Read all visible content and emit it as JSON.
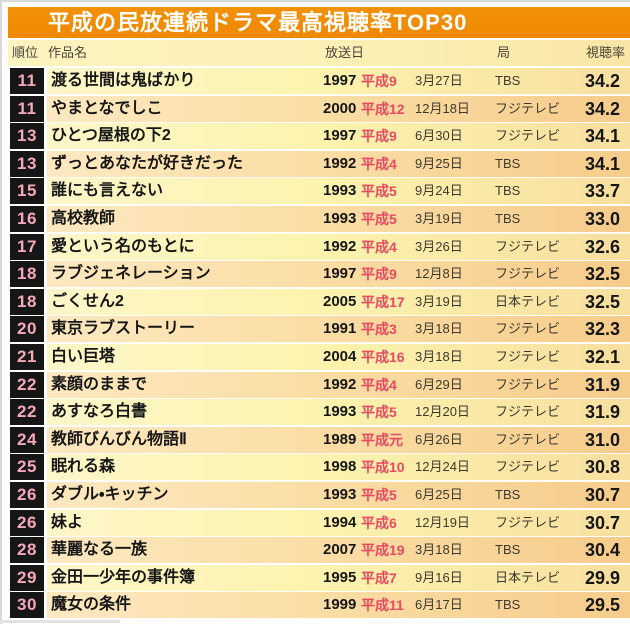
{
  "page_title": "平成の民放連続ドラマ最高視聴率TOP30",
  "colors": {
    "title_bar_orange": "#F18C00",
    "title_text": "#FFFFFF",
    "header_bg": "#FBF0B6",
    "row_odd_bg": "#FBDEA6",
    "row_even_bg": "#FCF4AE",
    "rank_badge_bg": "#161616",
    "rank_number_pink": "#F5A8BC",
    "era_red": "#E84A62",
    "body_text": "#161616"
  },
  "chart_data": {
    "type": "table",
    "title": "平成の民放連続ドラマ最高視聴率TOP30",
    "columns": [
      "順位",
      "作品名",
      "放送日",
      "局",
      "視聴率"
    ],
    "rows": [
      {
        "rank": "11",
        "title": "渡る世間は鬼ばかり",
        "year": "1997",
        "era": "平成9",
        "date": "3月27日",
        "station": "TBS",
        "rating": "34.2"
      },
      {
        "rank": "11",
        "title": "やまとなでしこ",
        "year": "2000",
        "era": "平成12",
        "date": "12月18日",
        "station": "フジテレビ",
        "rating": "34.2"
      },
      {
        "rank": "13",
        "title": "ひとつ屋根の下2",
        "year": "1997",
        "era": "平成9",
        "date": "6月30日",
        "station": "フジテレビ",
        "rating": "34.1"
      },
      {
        "rank": "13",
        "title": "ずっとあなたが好きだった",
        "year": "1992",
        "era": "平成4",
        "date": "9月25日",
        "station": "TBS",
        "rating": "34.1"
      },
      {
        "rank": "15",
        "title": "誰にも言えない",
        "year": "1993",
        "era": "平成5",
        "date": "9月24日",
        "station": "TBS",
        "rating": "33.7"
      },
      {
        "rank": "16",
        "title": "高校教師",
        "year": "1993",
        "era": "平成5",
        "date": "3月19日",
        "station": "TBS",
        "rating": "33.0"
      },
      {
        "rank": "17",
        "title": "愛という名のもとに",
        "year": "1992",
        "era": "平成4",
        "date": "3月26日",
        "station": "フジテレビ",
        "rating": "32.6"
      },
      {
        "rank": "18",
        "title": "ラブジェネレーション",
        "year": "1997",
        "era": "平成9",
        "date": "12月8日",
        "station": "フジテレビ",
        "rating": "32.5"
      },
      {
        "rank": "18",
        "title": "ごくせん2",
        "year": "2005",
        "era": "平成17",
        "date": "3月19日",
        "station": "日本テレビ",
        "rating": "32.5"
      },
      {
        "rank": "20",
        "title": "東京ラブストーリー",
        "year": "1991",
        "era": "平成3",
        "date": "3月18日",
        "station": "フジテレビ",
        "rating": "32.3"
      },
      {
        "rank": "21",
        "title": "白い巨塔",
        "year": "2004",
        "era": "平成16",
        "date": "3月18日",
        "station": "フジテレビ",
        "rating": "32.1"
      },
      {
        "rank": "22",
        "title": "素顔のままで",
        "year": "1992",
        "era": "平成4",
        "date": "6月29日",
        "station": "フジテレビ",
        "rating": "31.9"
      },
      {
        "rank": "22",
        "title": "あすなろ白書",
        "year": "1993",
        "era": "平成5",
        "date": "12月20日",
        "station": "フジテレビ",
        "rating": "31.9"
      },
      {
        "rank": "24",
        "title": "教師びんびん物語Ⅱ",
        "year": "1989",
        "era": "平成元",
        "date": "6月26日",
        "station": "フジテレビ",
        "rating": "31.0"
      },
      {
        "rank": "25",
        "title": "眠れる森",
        "year": "1998",
        "era": "平成10",
        "date": "12月24日",
        "station": "フジテレビ",
        "rating": "30.8"
      },
      {
        "rank": "26",
        "title": "ダブル・キッチン",
        "year": "1993",
        "era": "平成5",
        "date": "6月25日",
        "station": "TBS",
        "rating": "30.7"
      },
      {
        "rank": "26",
        "title": "妹よ",
        "year": "1994",
        "era": "平成6",
        "date": "12月19日",
        "station": "フジテレビ",
        "rating": "30.7"
      },
      {
        "rank": "28",
        "title": "華麗なる一族",
        "year": "2007",
        "era": "平成19",
        "date": "3月18日",
        "station": "TBS",
        "rating": "30.4"
      },
      {
        "rank": "29",
        "title": "金田一少年の事件簿",
        "year": "1995",
        "era": "平成7",
        "date": "9月16日",
        "station": "日本テレビ",
        "rating": "29.9"
      },
      {
        "rank": "30",
        "title": "魔女の条件",
        "year": "1999",
        "era": "平成11",
        "date": "6月17日",
        "station": "TBS",
        "rating": "29.5"
      }
    ]
  }
}
